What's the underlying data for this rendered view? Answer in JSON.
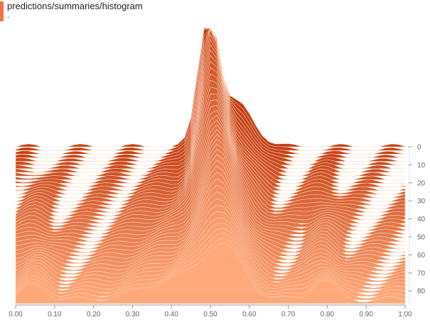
{
  "header": {
    "title": "predictions/summaries/histogram",
    "subtitle": "."
  },
  "colors": {
    "accent": "#f0714a",
    "back": "#c23e14",
    "front": "#ffa97a",
    "stroke": "#ffd9c2",
    "axis": "#999999"
  },
  "chart_data": {
    "type": "area",
    "mode": "offset",
    "x_ticks": [
      "0.00",
      "0.10",
      "0.20",
      "0.30",
      "0.40",
      "0.50",
      "0.60",
      "0.70",
      "0.80",
      "0.90",
      "1.00"
    ],
    "y_ticks": [
      "0",
      "10",
      "20",
      "30",
      "40",
      "50",
      "60",
      "70",
      "80"
    ],
    "xlim": [
      0,
      1
    ],
    "step_range": [
      0,
      87
    ]
  }
}
